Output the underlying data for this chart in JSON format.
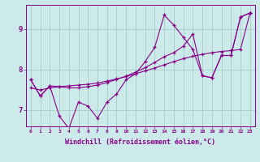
{
  "bg_color": "#cceaea",
  "grid_color": "#aacccc",
  "line_color": "#880088",
  "marker_color": "#880088",
  "xlabel": "Windchill (Refroidissement éolien,°C)",
  "xlim": [
    -0.5,
    23.5
  ],
  "ylim": [
    6.6,
    9.6
  ],
  "yticks": [
    7,
    8,
    9
  ],
  "xticks": [
    0,
    1,
    2,
    3,
    4,
    5,
    6,
    7,
    8,
    9,
    10,
    11,
    12,
    13,
    14,
    15,
    16,
    17,
    18,
    19,
    20,
    21,
    22,
    23
  ],
  "lines": [
    {
      "x": [
        0,
        1,
        2,
        3,
        4,
        5,
        6,
        7,
        8,
        9,
        10,
        11,
        12,
        13,
        14,
        15,
        16,
        17,
        18,
        19,
        20,
        21,
        22,
        23
      ],
      "y": [
        7.75,
        7.35,
        7.6,
        6.85,
        6.55,
        7.2,
        7.1,
        6.8,
        7.2,
        7.4,
        7.75,
        7.9,
        8.2,
        8.55,
        9.35,
        9.1,
        8.8,
        8.5,
        7.85,
        7.8,
        8.35,
        8.35,
        9.3,
        9.4
      ]
    },
    {
      "x": [
        0,
        1,
        2,
        3,
        4,
        5,
        6,
        7,
        8,
        9,
        10,
        11,
        12,
        13,
        14,
        15,
        16,
        17,
        18,
        19,
        20,
        21,
        22,
        23
      ],
      "y": [
        7.55,
        7.5,
        7.55,
        7.58,
        7.6,
        7.62,
        7.64,
        7.67,
        7.72,
        7.77,
        7.83,
        7.9,
        7.97,
        8.04,
        8.12,
        8.2,
        8.27,
        8.33,
        8.38,
        8.42,
        8.45,
        8.47,
        8.5,
        9.4
      ]
    },
    {
      "x": [
        0,
        1,
        2,
        3,
        4,
        5,
        6,
        7,
        8,
        9,
        10,
        11,
        12,
        13,
        14,
        15,
        16,
        17,
        18,
        19,
        20,
        21,
        22,
        23
      ],
      "y": [
        7.75,
        7.35,
        7.6,
        7.58,
        7.55,
        7.55,
        7.58,
        7.62,
        7.68,
        7.76,
        7.84,
        7.94,
        8.05,
        8.18,
        8.32,
        8.42,
        8.58,
        8.88,
        7.85,
        7.8,
        8.35,
        8.35,
        9.3,
        9.4
      ]
    }
  ]
}
